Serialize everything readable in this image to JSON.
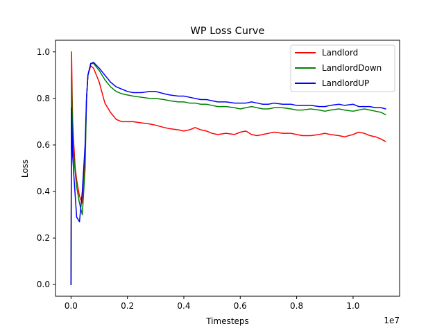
{
  "chart_data": {
    "type": "line",
    "title": "WP Loss Curve",
    "xlabel": "Timesteps",
    "ylabel": "Loss",
    "x_offset_text": "1e7",
    "x_scale": 10000000,
    "xlim": [
      -0.055,
      1.165
    ],
    "ylim": [
      -0.05,
      1.05
    ],
    "x_ticks": [
      0.0,
      0.2,
      0.4,
      0.6,
      0.8,
      1.0
    ],
    "x_tick_labels": [
      "0.0",
      "0.2",
      "0.4",
      "0.6",
      "0.8",
      "1.0"
    ],
    "y_ticks": [
      0.0,
      0.2,
      0.4,
      0.6,
      0.8,
      1.0
    ],
    "y_tick_labels": [
      "0.0",
      "0.2",
      "0.4",
      "0.6",
      "0.8",
      "1.0"
    ],
    "grid": false,
    "legend_position": "top-right",
    "series": [
      {
        "name": "Landlord",
        "color": "#ff0000",
        "x": [
          0.0,
          0.002,
          0.004,
          0.006,
          0.01,
          0.015,
          0.02,
          0.03,
          0.04,
          0.05,
          0.055,
          0.06,
          0.07,
          0.08,
          0.1,
          0.12,
          0.14,
          0.16,
          0.18,
          0.2,
          0.22,
          0.25,
          0.28,
          0.3,
          0.33,
          0.35,
          0.38,
          0.4,
          0.42,
          0.44,
          0.46,
          0.48,
          0.5,
          0.52,
          0.55,
          0.58,
          0.6,
          0.62,
          0.64,
          0.66,
          0.68,
          0.7,
          0.72,
          0.75,
          0.78,
          0.8,
          0.82,
          0.85,
          0.88,
          0.9,
          0.92,
          0.95,
          0.97,
          1.0,
          1.02,
          1.04,
          1.06,
          1.08,
          1.1,
          1.115
        ],
        "y": [
          0.0,
          1.0,
          0.82,
          0.7,
          0.6,
          0.5,
          0.45,
          0.38,
          0.35,
          0.55,
          0.8,
          0.9,
          0.94,
          0.93,
          0.87,
          0.78,
          0.74,
          0.71,
          0.7,
          0.7,
          0.7,
          0.695,
          0.69,
          0.685,
          0.675,
          0.67,
          0.665,
          0.66,
          0.665,
          0.675,
          0.665,
          0.66,
          0.65,
          0.645,
          0.65,
          0.645,
          0.655,
          0.66,
          0.645,
          0.64,
          0.645,
          0.65,
          0.655,
          0.65,
          0.65,
          0.645,
          0.64,
          0.64,
          0.645,
          0.65,
          0.645,
          0.64,
          0.635,
          0.645,
          0.655,
          0.65,
          0.64,
          0.635,
          0.625,
          0.615
        ]
      },
      {
        "name": "LandlordDown",
        "color": "#008000",
        "x": [
          0.0,
          0.002,
          0.004,
          0.006,
          0.01,
          0.015,
          0.02,
          0.03,
          0.04,
          0.05,
          0.055,
          0.06,
          0.07,
          0.08,
          0.1,
          0.12,
          0.14,
          0.16,
          0.18,
          0.2,
          0.22,
          0.25,
          0.28,
          0.3,
          0.33,
          0.35,
          0.38,
          0.4,
          0.42,
          0.44,
          0.46,
          0.48,
          0.5,
          0.52,
          0.55,
          0.58,
          0.6,
          0.62,
          0.64,
          0.66,
          0.68,
          0.7,
          0.72,
          0.75,
          0.78,
          0.8,
          0.82,
          0.85,
          0.88,
          0.9,
          0.92,
          0.95,
          0.97,
          1.0,
          1.02,
          1.04,
          1.06,
          1.08,
          1.1,
          1.115
        ],
        "y": [
          0.0,
          0.9,
          0.75,
          0.65,
          0.55,
          0.48,
          0.42,
          0.35,
          0.3,
          0.5,
          0.8,
          0.9,
          0.95,
          0.95,
          0.92,
          0.88,
          0.85,
          0.83,
          0.82,
          0.815,
          0.81,
          0.805,
          0.8,
          0.8,
          0.795,
          0.79,
          0.785,
          0.785,
          0.78,
          0.78,
          0.775,
          0.775,
          0.77,
          0.765,
          0.765,
          0.76,
          0.755,
          0.76,
          0.765,
          0.76,
          0.755,
          0.755,
          0.76,
          0.76,
          0.755,
          0.75,
          0.75,
          0.755,
          0.75,
          0.745,
          0.75,
          0.755,
          0.75,
          0.745,
          0.75,
          0.755,
          0.75,
          0.745,
          0.74,
          0.73
        ]
      },
      {
        "name": "LandlordUP",
        "color": "#0000ff",
        "x": [
          0.0,
          0.002,
          0.004,
          0.006,
          0.01,
          0.015,
          0.02,
          0.03,
          0.04,
          0.05,
          0.055,
          0.06,
          0.07,
          0.08,
          0.1,
          0.12,
          0.14,
          0.16,
          0.18,
          0.2,
          0.22,
          0.25,
          0.28,
          0.3,
          0.33,
          0.35,
          0.38,
          0.4,
          0.42,
          0.44,
          0.46,
          0.48,
          0.5,
          0.52,
          0.55,
          0.58,
          0.6,
          0.62,
          0.64,
          0.66,
          0.68,
          0.7,
          0.72,
          0.75,
          0.78,
          0.8,
          0.82,
          0.85,
          0.88,
          0.9,
          0.92,
          0.95,
          0.97,
          1.0,
          1.02,
          1.04,
          1.06,
          1.08,
          1.1,
          1.115
        ],
        "y": [
          0.0,
          0.76,
          0.65,
          0.55,
          0.47,
          0.38,
          0.29,
          0.27,
          0.4,
          0.6,
          0.8,
          0.9,
          0.95,
          0.955,
          0.93,
          0.9,
          0.87,
          0.85,
          0.84,
          0.83,
          0.825,
          0.825,
          0.83,
          0.83,
          0.82,
          0.815,
          0.81,
          0.81,
          0.805,
          0.8,
          0.795,
          0.795,
          0.79,
          0.785,
          0.785,
          0.78,
          0.78,
          0.78,
          0.785,
          0.78,
          0.775,
          0.775,
          0.78,
          0.775,
          0.775,
          0.77,
          0.77,
          0.77,
          0.765,
          0.765,
          0.77,
          0.775,
          0.77,
          0.775,
          0.765,
          0.765,
          0.765,
          0.76,
          0.76,
          0.755
        ]
      }
    ]
  }
}
